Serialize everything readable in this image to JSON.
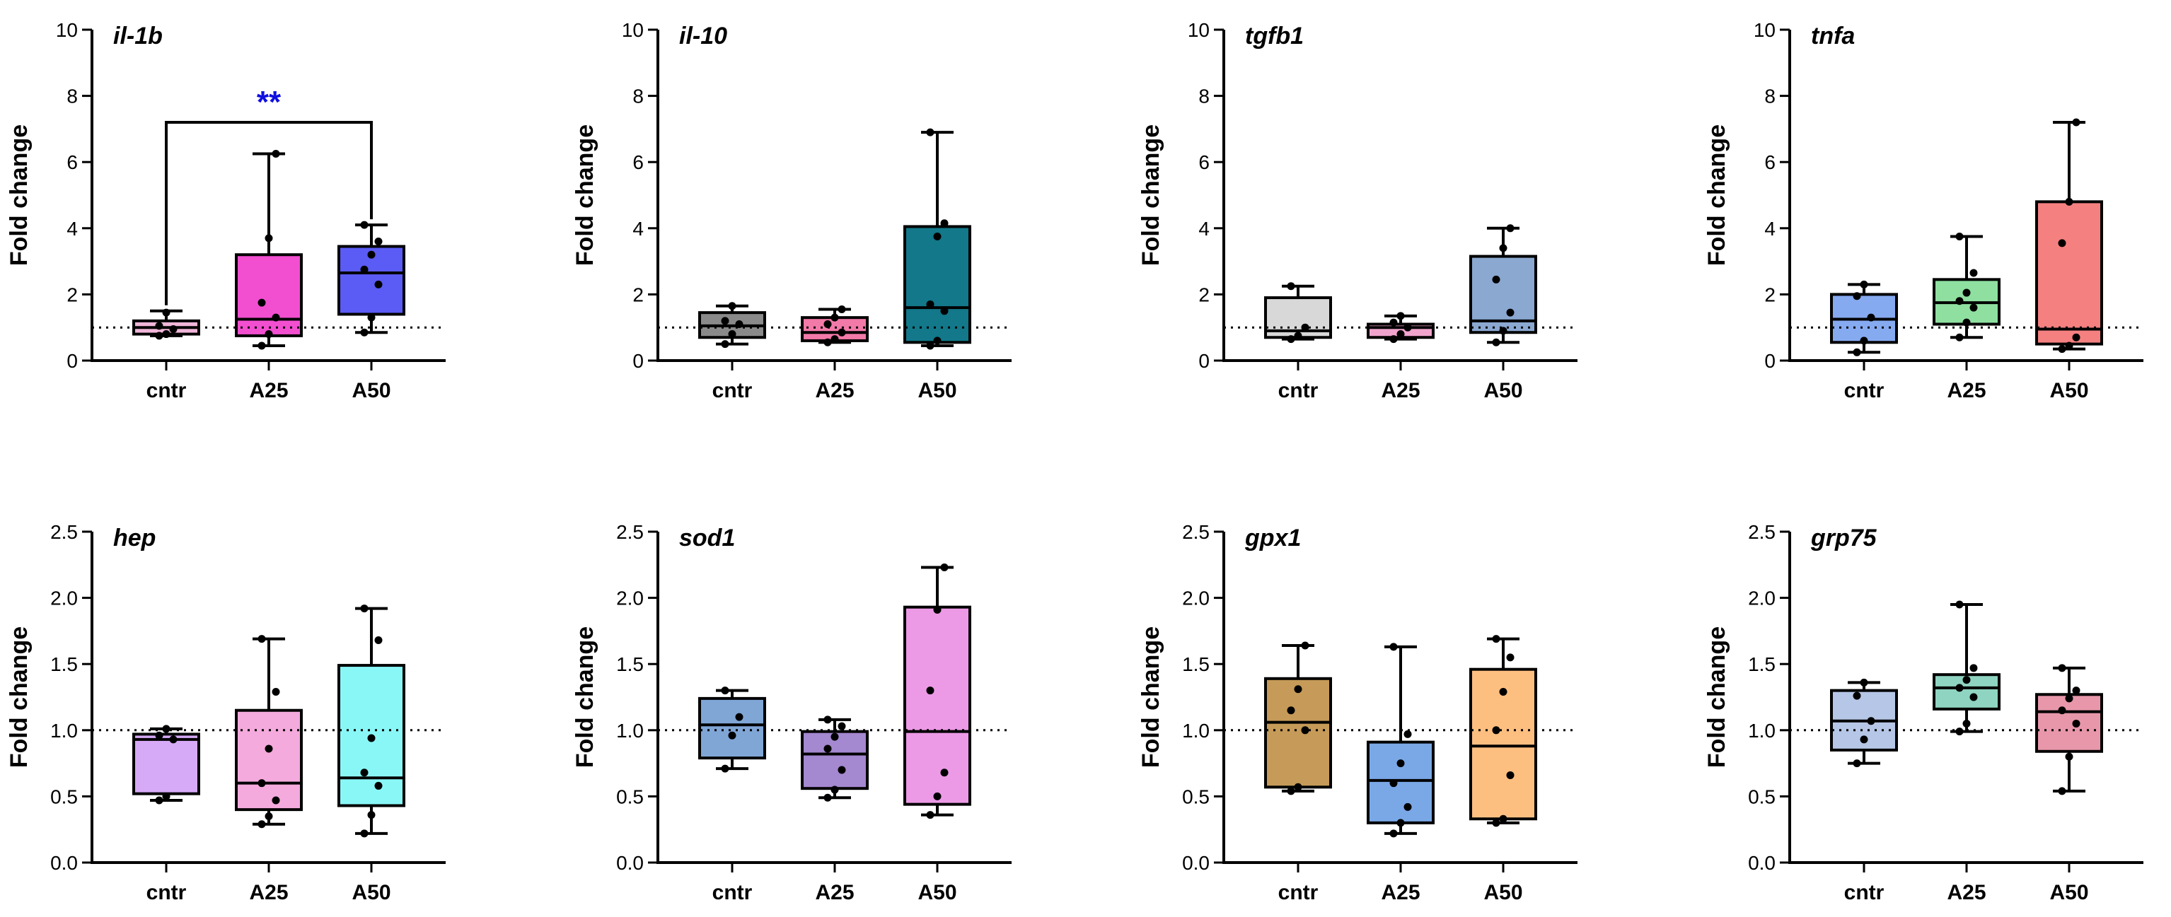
{
  "chart_data": [
    {
      "type": "box",
      "title": "il-1b",
      "ylabel": "Fold change",
      "ylim": [
        0,
        10
      ],
      "yticks": [
        "0",
        "2",
        "4",
        "6",
        "8",
        "10"
      ],
      "yvals": [
        0,
        2,
        4,
        6,
        8,
        10
      ],
      "reference_line": 1,
      "categories": [
        "cntr",
        "A25",
        "A50"
      ],
      "significance": {
        "from": "cntr",
        "to": "A50",
        "label": "**",
        "color": "#1010e0"
      },
      "boxes": [
        {
          "name": "cntr",
          "color": "#f0b6d8",
          "min": 0.75,
          "q1": 0.8,
          "median": 1.0,
          "q3": 1.2,
          "max": 1.5,
          "points": [
            0.75,
            0.8,
            0.95,
            1.05,
            1.45
          ]
        },
        {
          "name": "A25",
          "color": "#f24fd0",
          "min": 0.45,
          "q1": 0.75,
          "median": 1.25,
          "q3": 3.2,
          "max": 6.25,
          "points": [
            0.45,
            0.8,
            1.3,
            1.75,
            3.7,
            6.25
          ]
        },
        {
          "name": "A50",
          "color": "#5b5bf5",
          "min": 0.85,
          "q1": 1.4,
          "median": 2.65,
          "q3": 3.45,
          "max": 4.1,
          "points": [
            0.85,
            1.3,
            2.3,
            2.75,
            3.2,
            3.6,
            4.1
          ]
        }
      ]
    },
    {
      "type": "box",
      "title": "il-10",
      "ylabel": "Fold change",
      "ylim": [
        0,
        10
      ],
      "yticks": [
        "0",
        "2",
        "4",
        "6",
        "8",
        "10"
      ],
      "yvals": [
        0,
        2,
        4,
        6,
        8,
        10
      ],
      "reference_line": 1,
      "categories": [
        "cntr",
        "A25",
        "A50"
      ],
      "boxes": [
        {
          "name": "cntr",
          "color": "#8a8a8a",
          "min": 0.5,
          "q1": 0.7,
          "median": 1.05,
          "q3": 1.45,
          "max": 1.65,
          "points": [
            0.5,
            0.8,
            1.1,
            1.2,
            1.65
          ]
        },
        {
          "name": "A25",
          "color": "#f27aa8",
          "min": 0.55,
          "q1": 0.6,
          "median": 0.85,
          "q3": 1.3,
          "max": 1.55,
          "points": [
            0.55,
            0.65,
            0.85,
            1.1,
            1.3,
            1.55
          ]
        },
        {
          "name": "A50",
          "color": "#12788a",
          "min": 0.45,
          "q1": 0.55,
          "median": 1.6,
          "q3": 4.05,
          "max": 6.9,
          "points": [
            0.45,
            0.6,
            1.5,
            1.7,
            3.75,
            4.15,
            6.9
          ]
        }
      ]
    },
    {
      "type": "box",
      "title": "tgfb1",
      "ylabel": "Fold change",
      "ylim": [
        0,
        10
      ],
      "yticks": [
        "0",
        "2",
        "4",
        "6",
        "8",
        "10"
      ],
      "yvals": [
        0,
        2,
        4,
        6,
        8,
        10
      ],
      "reference_line": 1,
      "categories": [
        "cntr",
        "A25",
        "A50"
      ],
      "boxes": [
        {
          "name": "cntr",
          "color": "#d8d8d8",
          "min": 0.65,
          "q1": 0.7,
          "median": 0.9,
          "q3": 1.9,
          "max": 2.25,
          "points": [
            0.65,
            0.75,
            1.0,
            2.25
          ]
        },
        {
          "name": "A25",
          "color": "#f0a4cc",
          "min": 0.65,
          "q1": 0.7,
          "median": 1.0,
          "q3": 1.1,
          "max": 1.35,
          "points": [
            0.65,
            0.8,
            1.0,
            1.15,
            1.35
          ]
        },
        {
          "name": "A50",
          "color": "#8aa8d0",
          "min": 0.55,
          "q1": 0.85,
          "median": 1.2,
          "q3": 3.15,
          "max": 4.0,
          "points": [
            0.55,
            0.9,
            1.45,
            2.45,
            3.4,
            4.0
          ]
        }
      ]
    },
    {
      "type": "box",
      "title": "tnfa",
      "ylabel": "Fold change",
      "ylim": [
        0,
        10
      ],
      "yticks": [
        "0",
        "2",
        "4",
        "6",
        "8",
        "10"
      ],
      "yvals": [
        0,
        2,
        4,
        6,
        8,
        10
      ],
      "reference_line": 1,
      "categories": [
        "cntr",
        "A25",
        "A50"
      ],
      "boxes": [
        {
          "name": "cntr",
          "color": "#86aaf0",
          "min": 0.25,
          "q1": 0.55,
          "median": 1.25,
          "q3": 2.0,
          "max": 2.3,
          "points": [
            0.25,
            0.6,
            1.3,
            1.95,
            2.3
          ]
        },
        {
          "name": "A25",
          "color": "#8fe0a0",
          "min": 0.7,
          "q1": 1.1,
          "median": 1.75,
          "q3": 2.45,
          "max": 3.75,
          "points": [
            0.7,
            1.15,
            1.6,
            1.8,
            2.05,
            2.65,
            3.75
          ]
        },
        {
          "name": "A50",
          "color": "#f58080",
          "min": 0.35,
          "q1": 0.5,
          "median": 0.95,
          "q3": 4.8,
          "max": 7.2,
          "points": [
            0.35,
            0.45,
            0.7,
            3.55,
            4.8,
            7.2
          ]
        }
      ]
    },
    {
      "type": "box",
      "title": "hep",
      "ylabel": "Fold change",
      "ylim": [
        0,
        2.5
      ],
      "yticks": [
        "0.0",
        "0.5",
        "1.0",
        "1.5",
        "2.0",
        "2.5"
      ],
      "yvals": [
        0,
        0.5,
        1,
        1.5,
        2,
        2.5
      ],
      "reference_line": 1,
      "categories": [
        "cntr",
        "A25",
        "A50"
      ],
      "boxes": [
        {
          "name": "cntr",
          "color": "#d7aaf7",
          "min": 0.47,
          "q1": 0.52,
          "median": 0.93,
          "q3": 0.97,
          "max": 1.01,
          "points": [
            0.47,
            0.5,
            0.93,
            0.96,
            1.01
          ]
        },
        {
          "name": "A25",
          "color": "#f4aadc",
          "min": 0.29,
          "q1": 0.4,
          "median": 0.6,
          "q3": 1.15,
          "max": 1.69,
          "points": [
            0.29,
            0.35,
            0.47,
            0.6,
            0.86,
            1.29,
            1.69
          ]
        },
        {
          "name": "A50",
          "color": "#8af7f7",
          "min": 0.22,
          "q1": 0.43,
          "median": 0.64,
          "q3": 1.49,
          "max": 1.92,
          "points": [
            0.22,
            0.36,
            0.58,
            0.68,
            0.94,
            1.68,
            1.92
          ]
        }
      ]
    },
    {
      "type": "box",
      "title": "sod1",
      "ylabel": "Fold change",
      "ylim": [
        0,
        2.5
      ],
      "yticks": [
        "0.0",
        "0.5",
        "1.0",
        "1.5",
        "2.0",
        "2.5"
      ],
      "yvals": [
        0,
        0.5,
        1,
        1.5,
        2,
        2.5
      ],
      "reference_line": 1,
      "categories": [
        "cntr",
        "A25",
        "A50"
      ],
      "boxes": [
        {
          "name": "cntr",
          "color": "#80a6d6",
          "min": 0.71,
          "q1": 0.79,
          "median": 1.04,
          "q3": 1.24,
          "max": 1.3,
          "points": [
            0.71,
            0.96,
            1.1,
            1.3
          ]
        },
        {
          "name": "A25",
          "color": "#a488d0",
          "min": 0.49,
          "q1": 0.56,
          "median": 0.82,
          "q3": 0.99,
          "max": 1.08,
          "points": [
            0.49,
            0.55,
            0.7,
            0.86,
            0.95,
            1.03,
            1.08
          ]
        },
        {
          "name": "A50",
          "color": "#ec9ae6",
          "min": 0.36,
          "q1": 0.44,
          "median": 0.99,
          "q3": 1.93,
          "max": 2.23,
          "points": [
            0.36,
            0.5,
            0.68,
            1.3,
            1.91,
            2.23
          ]
        }
      ]
    },
    {
      "type": "box",
      "title": "gpx1",
      "ylabel": "Fold change",
      "ylim": [
        0,
        2.5
      ],
      "yticks": [
        "0.0",
        "0.5",
        "1.0",
        "1.5",
        "2.0",
        "2.5"
      ],
      "yvals": [
        0,
        0.5,
        1,
        1.5,
        2,
        2.5
      ],
      "reference_line": 1,
      "categories": [
        "cntr",
        "A25",
        "A50"
      ],
      "boxes": [
        {
          "name": "cntr",
          "color": "#c69a58",
          "min": 0.54,
          "q1": 0.57,
          "median": 1.06,
          "q3": 1.39,
          "max": 1.64,
          "points": [
            0.54,
            0.57,
            1.0,
            1.15,
            1.31,
            1.64
          ]
        },
        {
          "name": "A25",
          "color": "#7aa8e6",
          "min": 0.22,
          "q1": 0.3,
          "median": 0.62,
          "q3": 0.91,
          "max": 1.63,
          "points": [
            0.22,
            0.3,
            0.42,
            0.6,
            0.75,
            0.97,
            1.63
          ]
        },
        {
          "name": "A50",
          "color": "#fdbf80",
          "min": 0.3,
          "q1": 0.33,
          "median": 0.88,
          "q3": 1.46,
          "max": 1.69,
          "points": [
            0.3,
            0.33,
            0.66,
            1.0,
            1.29,
            1.55,
            1.69
          ]
        }
      ]
    },
    {
      "type": "box",
      "title": "grp75",
      "ylabel": "Fold change",
      "ylim": [
        0,
        2.5
      ],
      "yticks": [
        "0.0",
        "0.5",
        "1.0",
        "1.5",
        "2.0",
        "2.5"
      ],
      "yvals": [
        0,
        0.5,
        1,
        1.5,
        2,
        2.5
      ],
      "reference_line": 1,
      "categories": [
        "cntr",
        "A25",
        "A50"
      ],
      "boxes": [
        {
          "name": "cntr",
          "color": "#b6c6e6",
          "min": 0.75,
          "q1": 0.85,
          "median": 1.07,
          "q3": 1.3,
          "max": 1.36,
          "points": [
            0.75,
            0.93,
            1.07,
            1.26,
            1.36
          ]
        },
        {
          "name": "A25",
          "color": "#8fd4c0",
          "min": 0.99,
          "q1": 1.16,
          "median": 1.32,
          "q3": 1.42,
          "max": 1.95,
          "points": [
            0.99,
            1.05,
            1.25,
            1.32,
            1.38,
            1.47,
            1.95
          ]
        },
        {
          "name": "A50",
          "color": "#e897aa",
          "min": 0.54,
          "q1": 0.84,
          "median": 1.14,
          "q3": 1.27,
          "max": 1.47,
          "points": [
            0.54,
            0.8,
            1.05,
            1.15,
            1.24,
            1.3,
            1.47
          ]
        }
      ]
    }
  ]
}
